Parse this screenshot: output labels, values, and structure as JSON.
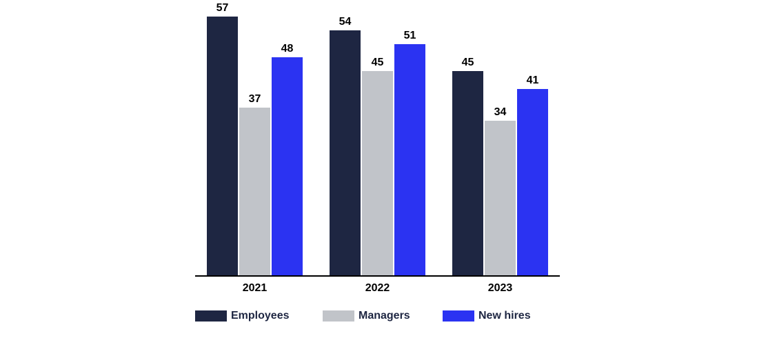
{
  "chart_data": {
    "type": "bar",
    "title": "",
    "xlabel": "",
    "ylabel": "",
    "categories": [
      "2021",
      "2022",
      "2023"
    ],
    "series": [
      {
        "name": "Employees",
        "color": "#1e2642",
        "values": [
          57,
          54,
          45
        ]
      },
      {
        "name": "Managers",
        "color": "#c1c4c9",
        "values": [
          37,
          45,
          34
        ]
      },
      {
        "name": "New hires",
        "color": "#2b33f2",
        "values": [
          48,
          51,
          41
        ]
      }
    ],
    "value_labels": true,
    "ylim": [
      0,
      61
    ],
    "grid": false,
    "y_axis_visible": false,
    "legend_position": "bottom",
    "axis_line_color": "#000000",
    "value_label_color": "#000000",
    "x_tick_label_color": "#000000",
    "legend_text_color": "#1e2642",
    "background": "#ffffff"
  }
}
